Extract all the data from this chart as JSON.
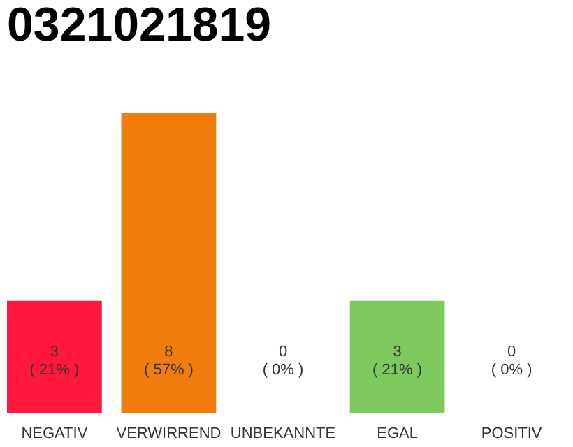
{
  "chart_data": {
    "type": "bar",
    "title": "0321021819",
    "categories": [
      "NEGATIV",
      "VERWIRREND",
      "UNBEKANNTE",
      "EGAL",
      "POSITIV"
    ],
    "values": [
      3,
      8,
      0,
      3,
      0
    ],
    "colors": [
      "#ff173d",
      "#f07d0e",
      "#6a9be0",
      "#7dc95e",
      "#2ca04c"
    ],
    "value_labels": [
      "3\n( 21% )",
      "8\n( 57% )",
      "0\n( 0% )",
      "3\n( 21% )",
      "0\n( 0% )"
    ]
  }
}
